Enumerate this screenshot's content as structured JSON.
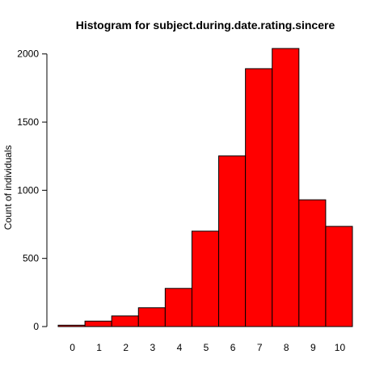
{
  "chart_data": {
    "type": "bar",
    "title": "Histogram for subject.during.date.rating.sincere",
    "xlabel": "",
    "ylabel": "Count of individuals",
    "categories": [
      "0",
      "1",
      "2",
      "3",
      "4",
      "5",
      "6",
      "7",
      "8",
      "9",
      "10"
    ],
    "values": [
      10,
      40,
      78,
      138,
      280,
      700,
      1252,
      1892,
      2040,
      930,
      735
    ],
    "ylim": [
      0,
      2040
    ],
    "yticks": [
      0,
      500,
      1000,
      1500,
      2000
    ],
    "bar_color": "#FF0000",
    "bar_outline": "#000000",
    "grid": false
  }
}
